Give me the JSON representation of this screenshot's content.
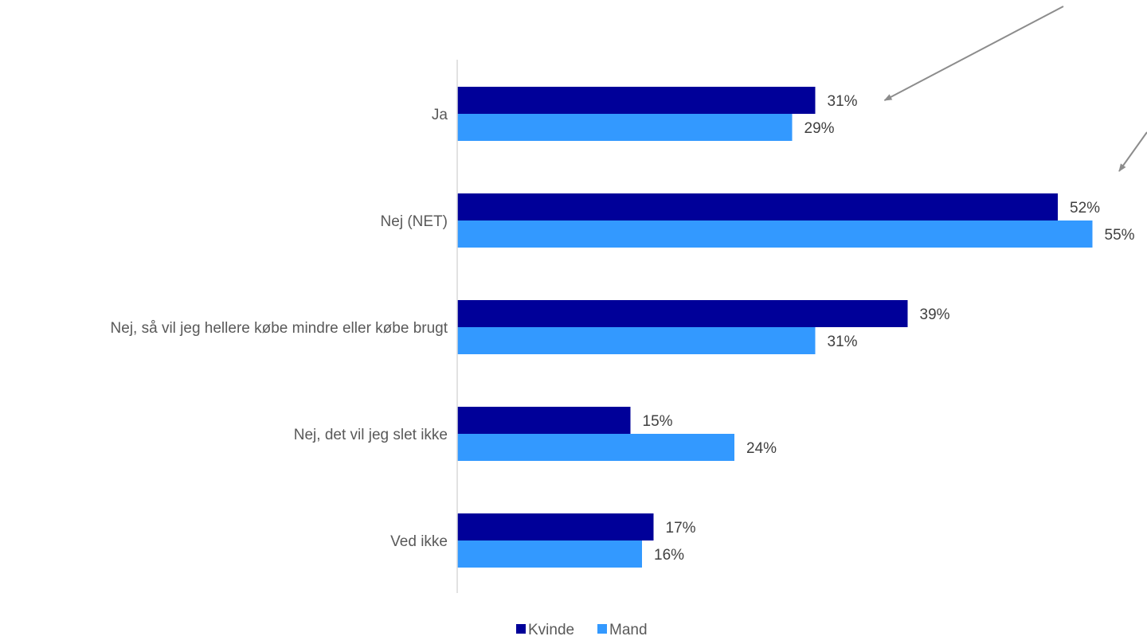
{
  "chart_data": {
    "type": "bar",
    "orientation": "horizontal",
    "title": "",
    "xlabel": "",
    "ylabel": "",
    "categories": [
      "Ja",
      "Nej (NET)",
      "Nej, så vil jeg hellere købe mindre eller købe brugt",
      "Nej, det vil jeg slet ikke",
      "Ved ikke"
    ],
    "series": [
      {
        "name": "Kvinde",
        "color": "#000099",
        "values": [
          31,
          52,
          39,
          15,
          17
        ]
      },
      {
        "name": "Mand",
        "color": "#3399ff",
        "values": [
          29,
          55,
          31,
          24,
          16
        ]
      }
    ],
    "value_suffix": "%",
    "xlim": [
      0,
      55
    ],
    "grid": false,
    "legend_position": "bottom",
    "annotations": [
      {
        "type": "arrow",
        "target": "Ja / Kvinde"
      },
      {
        "type": "arrow",
        "target": "Nej (NET)"
      }
    ],
    "colors": {
      "axis": "#d9d9d9",
      "arrow": "#8c8c8c",
      "category_text": "#595959",
      "value_text": "#404040"
    }
  }
}
